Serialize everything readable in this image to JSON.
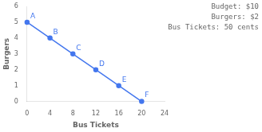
{
  "chart_data": {
    "type": "line",
    "title": "Budget: $10\nBurgers: $2\nBus Tickets: 50 cents",
    "x_label": "Bus Tickets",
    "y_label": "Burgers",
    "x": [
      0,
      4,
      8,
      12,
      16,
      20
    ],
    "values": [
      5,
      4,
      3,
      2,
      1,
      0
    ],
    "annotations": [
      "A",
      "B",
      "C",
      "D",
      "E",
      "F"
    ],
    "color": "#4477EE",
    "xlim": [
      0,
      24
    ],
    "xticks": [
      0,
      4,
      8,
      12,
      16,
      20,
      24
    ],
    "ylim": [
      0,
      6
    ],
    "yticks": [
      0,
      1,
      2,
      3,
      4,
      5,
      6
    ],
    "grid": false,
    "legend": false
  }
}
